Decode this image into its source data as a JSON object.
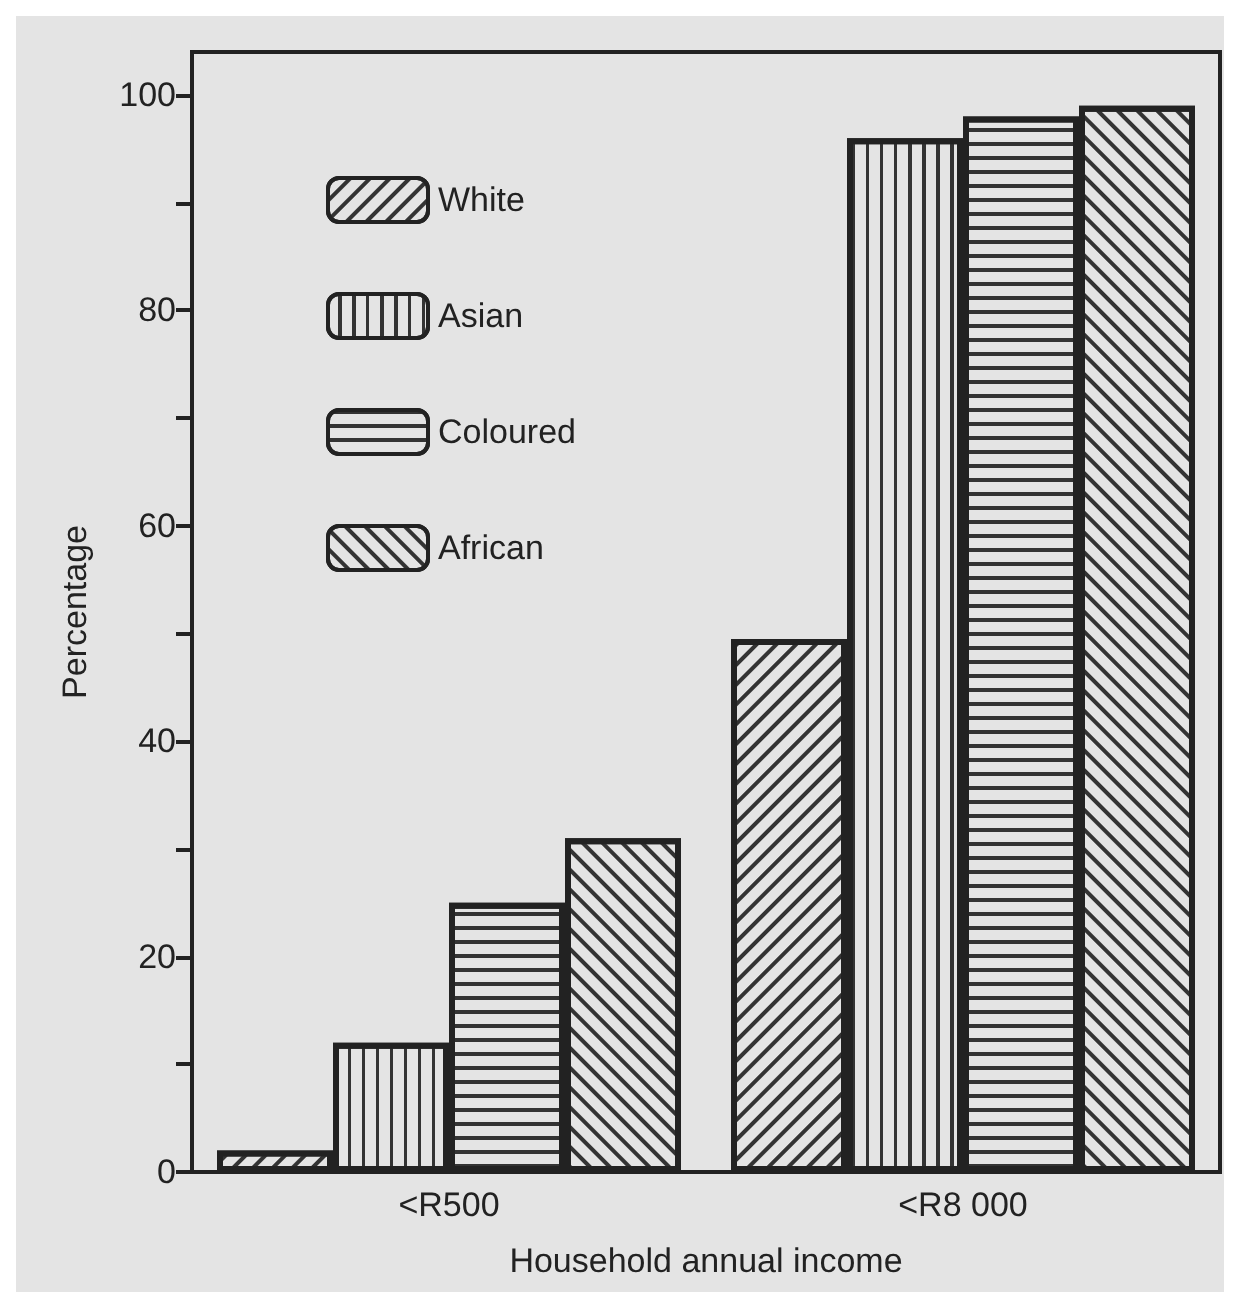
{
  "chart_data": {
    "type": "bar",
    "xlabel": "Household annual income",
    "ylabel": "Percentage",
    "categories": [
      "<R500",
      "<R8 000"
    ],
    "series": [
      {
        "name": "White",
        "color": "#e4e4e4",
        "values": [
          2,
          49.5
        ]
      },
      {
        "name": "Asian",
        "color": "#e4e4e4",
        "values": [
          12,
          96
        ]
      },
      {
        "name": "Coloured",
        "color": "#e4e4e4",
        "values": [
          25,
          98
        ]
      },
      {
        "name": "African",
        "color": "#e4e4e4",
        "values": [
          31,
          99
        ]
      }
    ],
    "ylim": [
      0,
      104
    ],
    "yticks": [
      0,
      {
        "value": 10,
        "label": null
      },
      20,
      {
        "value": 30,
        "label": null
      },
      40,
      {
        "value": 50,
        "label": null
      },
      60,
      {
        "value": 70,
        "label": null
      },
      80,
      {
        "value": 90,
        "label": null
      },
      100
    ],
    "grid": false,
    "legend": "top left"
  }
}
